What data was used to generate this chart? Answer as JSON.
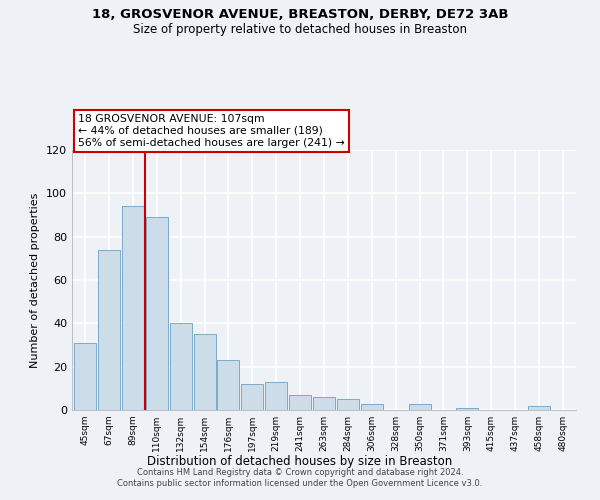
{
  "title": "18, GROSVENOR AVENUE, BREASTON, DERBY, DE72 3AB",
  "subtitle": "Size of property relative to detached houses in Breaston",
  "xlabel": "Distribution of detached houses by size in Breaston",
  "ylabel": "Number of detached properties",
  "bar_labels": [
    "45sqm",
    "67sqm",
    "89sqm",
    "110sqm",
    "132sqm",
    "154sqm",
    "176sqm",
    "197sqm",
    "219sqm",
    "241sqm",
    "263sqm",
    "284sqm",
    "306sqm",
    "328sqm",
    "350sqm",
    "371sqm",
    "393sqm",
    "415sqm",
    "437sqm",
    "458sqm",
    "480sqm"
  ],
  "bar_values": [
    31,
    74,
    94,
    89,
    40,
    35,
    23,
    12,
    13,
    7,
    6,
    5,
    3,
    0,
    3,
    0,
    1,
    0,
    0,
    2,
    0
  ],
  "bar_color": "#ccdce8",
  "bar_edge_color": "#7aaac8",
  "vline_x": 2.5,
  "vline_color": "#cc0000",
  "ylim": [
    0,
    120
  ],
  "yticks": [
    0,
    20,
    40,
    60,
    80,
    100,
    120
  ],
  "annotation_title": "18 GROSVENOR AVENUE: 107sqm",
  "annotation_line1": "← 44% of detached houses are smaller (189)",
  "annotation_line2": "56% of semi-detached houses are larger (241) →",
  "box_color": "white",
  "box_edge_color": "#cc0000",
  "footer_line1": "Contains HM Land Registry data © Crown copyright and database right 2024.",
  "footer_line2": "Contains public sector information licensed under the Open Government Licence v3.0.",
  "bg_color": "#eef2f7",
  "grid_color": "white"
}
